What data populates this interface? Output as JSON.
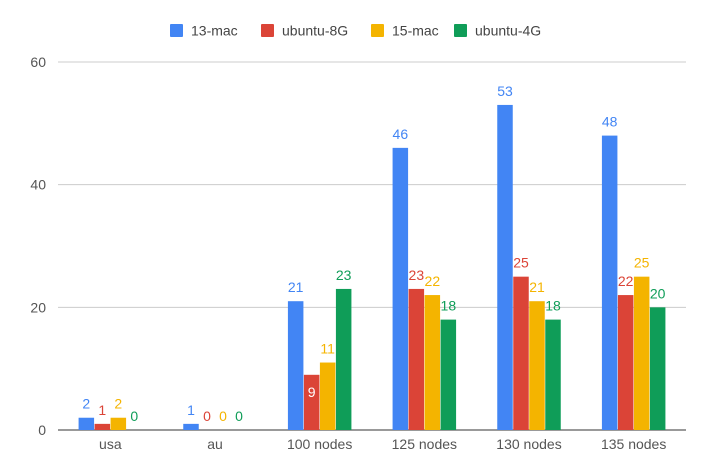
{
  "chart_data": {
    "type": "bar",
    "categories": [
      "usa",
      "au",
      "100 nodes",
      "125 nodes",
      "130 nodes",
      "135 nodes"
    ],
    "series": [
      {
        "name": "13-mac",
        "color": "#4285F4",
        "values": [
          2,
          1,
          21,
          46,
          53,
          48
        ]
      },
      {
        "name": "ubuntu-8G",
        "color": "#DB4437",
        "values": [
          1,
          0,
          9,
          23,
          25,
          22
        ]
      },
      {
        "name": "15-mac",
        "color": "#F4B400",
        "values": [
          2,
          0,
          11,
          22,
          21,
          25
        ]
      },
      {
        "name": "ubuntu-4G",
        "color": "#0F9D58",
        "values": [
          0,
          0,
          23,
          18,
          18,
          20
        ]
      }
    ],
    "ylim": [
      0,
      60
    ],
    "yticks": [
      0,
      20,
      40,
      60
    ],
    "grid": true,
    "legend_position": "top",
    "data_labels": true
  }
}
